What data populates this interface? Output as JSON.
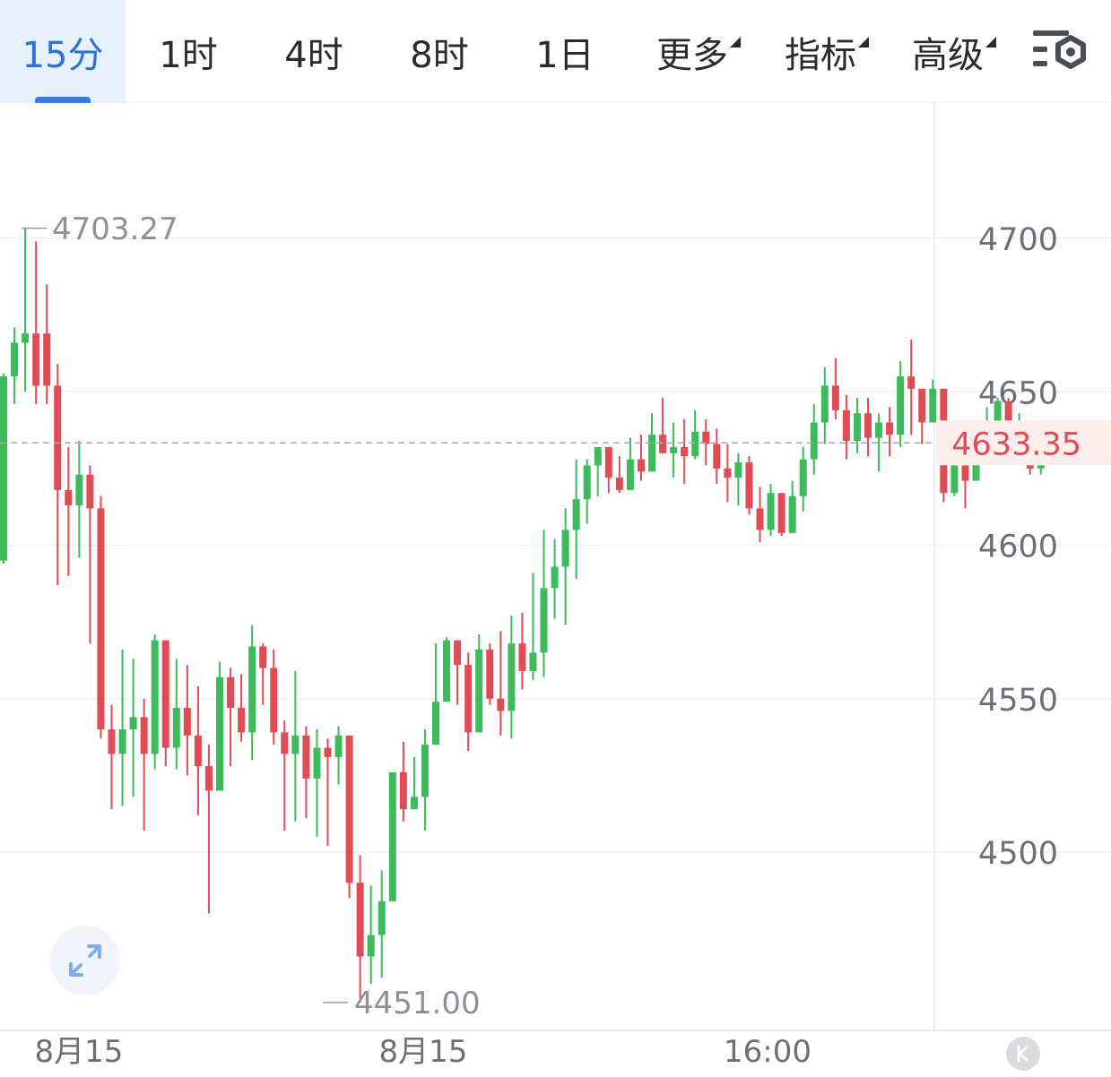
{
  "tabs": [
    {
      "label": "15分",
      "active": true,
      "dropdown": false
    },
    {
      "label": "1时",
      "active": false,
      "dropdown": false
    },
    {
      "label": "4时",
      "active": false,
      "dropdown": false
    },
    {
      "label": "8时",
      "active": false,
      "dropdown": false
    },
    {
      "label": "1日",
      "active": false,
      "dropdown": false
    },
    {
      "label": "更多",
      "active": false,
      "dropdown": true
    },
    {
      "label": "指标",
      "active": false,
      "dropdown": true
    },
    {
      "label": "高级",
      "active": false,
      "dropdown": true
    }
  ],
  "icons": {
    "settings": "chart-settings-icon",
    "expand": "expand-arrows-icon",
    "collapse": "k-collapse-icon"
  },
  "colors": {
    "up": "#3dba5c",
    "down": "#e14b55",
    "accent": "#2f6fde",
    "last_price": "#e14b55"
  },
  "chart_data": {
    "type": "candlestick",
    "interval": "15分",
    "y_ticks": [
      "4700",
      "4650",
      "4600",
      "4550",
      "4500"
    ],
    "ylim": [
      4445,
      4745
    ],
    "x_labels": [
      "8月15",
      "8月15",
      "16:00"
    ],
    "high_marker": "4703.27",
    "low_marker": "4451.00",
    "last_price": "4633.35",
    "last_price_value": 4633.35,
    "grid": true,
    "candles": [
      [
        4595,
        4655,
        4656,
        4594
      ],
      [
        4655,
        4666,
        4671,
        4646
      ],
      [
        4666,
        4669,
        4703.27,
        4650
      ],
      [
        4669,
        4652,
        4699,
        4646
      ],
      [
        4669,
        4652,
        4685,
        4646
      ],
      [
        4652,
        4618,
        4659,
        4587
      ],
      [
        4618,
        4613,
        4632,
        4590
      ],
      [
        4613,
        4623,
        4634,
        4596
      ],
      [
        4623,
        4612,
        4626,
        4568
      ],
      [
        4612,
        4540,
        4616,
        4537
      ],
      [
        4540,
        4532,
        4548,
        4514
      ],
      [
        4532,
        4540,
        4566,
        4515
      ],
      [
        4540,
        4544,
        4563,
        4518
      ],
      [
        4544,
        4532,
        4550,
        4507
      ],
      [
        4532,
        4569,
        4571,
        4527
      ],
      [
        4569,
        4534,
        4569,
        4528
      ],
      [
        4534,
        4547,
        4563,
        4527
      ],
      [
        4547,
        4538,
        4561,
        4525
      ],
      [
        4538,
        4528,
        4554,
        4512
      ],
      [
        4528,
        4520,
        4535,
        4480
      ],
      [
        4520,
        4557,
        4562,
        4525
      ],
      [
        4557,
        4547,
        4560,
        4528
      ],
      [
        4547,
        4539,
        4558,
        4536
      ],
      [
        4539,
        4567,
        4574,
        4530
      ],
      [
        4567,
        4560,
        4568,
        4548
      ],
      [
        4560,
        4539,
        4566,
        4535
      ],
      [
        4539,
        4532,
        4543,
        4507
      ],
      [
        4532,
        4538,
        4559,
        4510
      ],
      [
        4538,
        4524,
        4541,
        4511
      ],
      [
        4524,
        4534,
        4540,
        4505
      ],
      [
        4534,
        4531,
        4537,
        4502
      ],
      [
        4531,
        4538,
        4541,
        4522
      ],
      [
        4538,
        4490,
        4538,
        4485
      ],
      [
        4490,
        4466,
        4499,
        4451
      ],
      [
        4466,
        4473,
        4489,
        4457
      ],
      [
        4473,
        4484,
        4494,
        4459
      ],
      [
        4484,
        4526,
        4526,
        4484
      ],
      [
        4526,
        4514,
        4536,
        4510
      ],
      [
        4514,
        4518,
        4531,
        4514
      ],
      [
        4518,
        4535,
        4540,
        4507
      ],
      [
        4535,
        4549,
        4568,
        4540
      ],
      [
        4549,
        4569,
        4570,
        4550
      ],
      [
        4569,
        4561,
        4563,
        4548
      ],
      [
        4561,
        4539,
        4565,
        4533
      ],
      [
        4539,
        4566,
        4571,
        4544
      ],
      [
        4566,
        4550,
        4568,
        4548
      ],
      [
        4550,
        4546,
        4572,
        4538
      ],
      [
        4546,
        4568,
        4577,
        4537
      ],
      [
        4568,
        4559,
        4578,
        4553
      ],
      [
        4559,
        4565,
        4591,
        4556
      ],
      [
        4565,
        4586,
        4605,
        4557
      ],
      [
        4586,
        4593,
        4602,
        4576
      ],
      [
        4593,
        4605,
        4612,
        4574
      ],
      [
        4605,
        4615,
        4628,
        4589
      ],
      [
        4615,
        4626,
        4628,
        4607
      ],
      [
        4626,
        4632,
        4632,
        4616
      ],
      [
        4632,
        4622,
        4626,
        4617
      ],
      [
        4622,
        4618,
        4629,
        4617
      ],
      [
        4618,
        4628,
        4635,
        4620
      ],
      [
        4628,
        4624,
        4636,
        4621
      ],
      [
        4624,
        4636,
        4643,
        4625
      ],
      [
        4636,
        4630,
        4648,
        4630
      ],
      [
        4630,
        4632,
        4640,
        4622
      ],
      [
        4632,
        4629,
        4641,
        4620
      ],
      [
        4629,
        4637,
        4644,
        4628
      ],
      [
        4637,
        4633,
        4641,
        4626
      ],
      [
        4633,
        4625,
        4638,
        4620
      ],
      [
        4625,
        4622,
        4633,
        4614
      ],
      [
        4622,
        4627,
        4630,
        4613
      ],
      [
        4627,
        4612,
        4629,
        4610
      ],
      [
        4612,
        4605,
        4619,
        4601
      ],
      [
        4605,
        4617,
        4620,
        4603
      ],
      [
        4617,
        4604,
        4617,
        4603
      ],
      [
        4604,
        4616,
        4621,
        4604
      ],
      [
        4616,
        4628,
        4632,
        4611
      ],
      [
        4628,
        4640,
        4646,
        4623
      ],
      [
        4640,
        4652,
        4658,
        4633
      ],
      [
        4652,
        4644,
        4661,
        4641
      ],
      [
        4644,
        4634,
        4649,
        4628
      ],
      [
        4634,
        4643,
        4648,
        4630
      ],
      [
        4643,
        4635,
        4648,
        4629
      ],
      [
        4635,
        4640,
        4643,
        4624
      ],
      [
        4640,
        4636,
        4645,
        4629
      ],
      [
        4636,
        4655,
        4660,
        4632
      ],
      [
        4655,
        4651,
        4667,
        4636
      ],
      [
        4651,
        4640,
        4651,
        4633
      ],
      [
        4640,
        4651,
        4654,
        4643
      ],
      [
        4651,
        4617,
        4651,
        4614
      ],
      [
        4617,
        4626,
        4631,
        4616
      ],
      [
        4626,
        4621,
        4634,
        4612
      ],
      [
        4621,
        4630,
        4639,
        4621
      ],
      [
        4630,
        4637,
        4645,
        4632
      ],
      [
        4637,
        4647,
        4648,
        4634
      ],
      [
        4647,
        4635,
        4648,
        4632
      ],
      [
        4635,
        4638,
        4643,
        4632
      ],
      [
        4638,
        4625,
        4640,
        4623
      ],
      [
        4625,
        4633,
        4640,
        4623
      ],
      [
        4638,
        4633,
        4640,
        4628
      ]
    ]
  }
}
